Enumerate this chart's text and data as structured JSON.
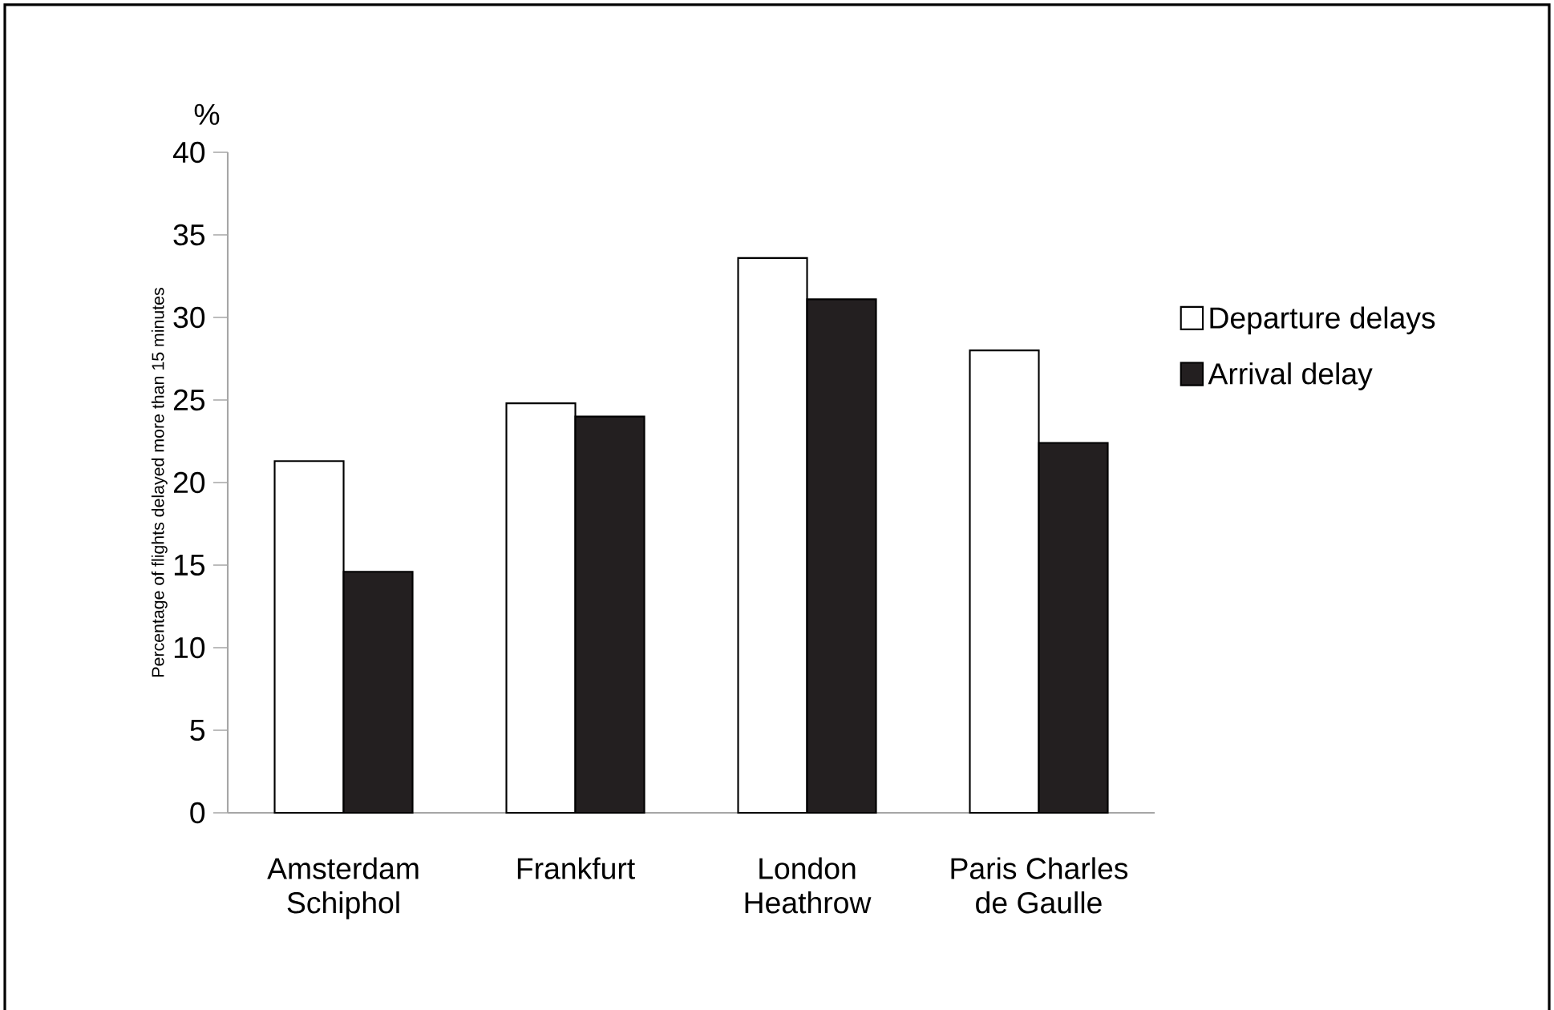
{
  "chart_data": {
    "type": "bar",
    "ylabel": "Percentage of flights delayed more than 15 minutes",
    "annotations": [
      "%"
    ],
    "categories": [
      "Amsterdam\nSchiphol",
      "Frankfurt",
      "London\nHeathrow",
      "Paris Charles\nde Gaulle"
    ],
    "series": [
      {
        "name": "Departure delays",
        "color": "#ffffff",
        "values": [
          21.3,
          24.8,
          33.6,
          28.0
        ]
      },
      {
        "name": "Arrival delay",
        "color": "#231f20",
        "values": [
          14.6,
          24.0,
          31.1,
          22.4
        ]
      }
    ],
    "ylim": [
      0,
      40
    ],
    "yticks": [
      0,
      5,
      10,
      15,
      20,
      25,
      30,
      35,
      40
    ],
    "grid": false,
    "legend": "right"
  }
}
